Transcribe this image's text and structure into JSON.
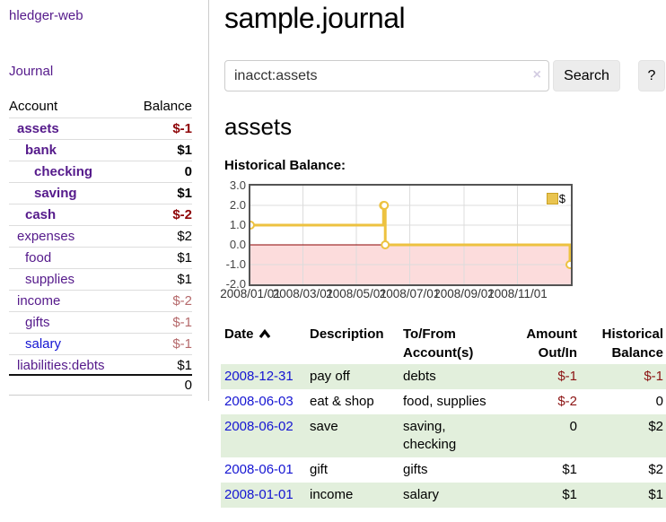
{
  "app": {
    "brand": "hledger-web",
    "nav": {
      "journal": "Journal"
    }
  },
  "sidebar": {
    "accounts_table": {
      "header": {
        "account": "Account",
        "balance": "Balance"
      },
      "rows": [
        {
          "label": "assets",
          "depth": 1,
          "bold": true,
          "link": "purple",
          "balance": "$-1",
          "tone": "darkred"
        },
        {
          "label": "bank",
          "depth": 2,
          "bold": true,
          "link": "purple",
          "balance": "$1",
          "tone": "black"
        },
        {
          "label": "checking",
          "depth": 3,
          "bold": true,
          "link": "purple",
          "balance": "0",
          "tone": "black"
        },
        {
          "label": "saving",
          "depth": 3,
          "bold": true,
          "link": "purple",
          "balance": "$1",
          "tone": "black"
        },
        {
          "label": "cash",
          "depth": 2,
          "bold": true,
          "link": "purple",
          "balance": "$-2",
          "tone": "darkred"
        },
        {
          "label": "expenses",
          "depth": 1,
          "bold": false,
          "link": "purple",
          "balance": "$2",
          "tone": "black"
        },
        {
          "label": "food",
          "depth": 2,
          "bold": false,
          "link": "purple",
          "balance": "$1",
          "tone": "black"
        },
        {
          "label": "supplies",
          "depth": 2,
          "bold": false,
          "link": "purple",
          "balance": "$1",
          "tone": "black"
        },
        {
          "label": "income",
          "depth": 1,
          "bold": false,
          "link": "purple",
          "balance": "$-2",
          "tone": "mutedred"
        },
        {
          "label": "gifts",
          "depth": 2,
          "bold": false,
          "link": "purple",
          "balance": "$-1",
          "tone": "mutedred"
        },
        {
          "label": "salary",
          "depth": 2,
          "bold": false,
          "link": "blue",
          "balance": "$-1",
          "tone": "mutedred"
        },
        {
          "label": "liabilities:debts",
          "depth": 1,
          "bold": false,
          "link": "purple",
          "balance": "$1",
          "tone": "black",
          "heavy_bottom": true
        }
      ],
      "total": "0"
    }
  },
  "main": {
    "title": "sample.journal",
    "search": {
      "value": "inacct:assets",
      "clear_icon": "×",
      "search_button": "Search",
      "help_button": "?"
    },
    "heading": "assets",
    "chart_label": "Historical Balance:",
    "register": {
      "headers": {
        "date": "Date",
        "description": "Description",
        "accounts": "To/From Account(s)",
        "amount": "Amount Out/In",
        "balance": "Historical Balance"
      },
      "rows": [
        {
          "date": "2008-12-31",
          "description": "pay off",
          "accounts": "debts",
          "accounts_wrap": false,
          "amount": "$-1",
          "amount_negative": true,
          "balance": "$-1",
          "balance_negative": true,
          "highlight": true
        },
        {
          "date": "2008-06-03",
          "description": "eat & shop",
          "accounts": "food, supplies",
          "accounts_wrap": false,
          "amount": "$-2",
          "amount_negative": true,
          "balance": "0",
          "balance_negative": false,
          "highlight": false
        },
        {
          "date": "2008-06-02",
          "description": "save",
          "accounts": "saving, checking",
          "accounts_wrap": true,
          "amount": "0",
          "amount_negative": false,
          "balance": "$2",
          "balance_negative": false,
          "highlight": true
        },
        {
          "date": "2008-06-01",
          "description": "gift",
          "accounts": "gifts",
          "accounts_wrap": false,
          "amount": "$1",
          "amount_negative": false,
          "balance": "$2",
          "balance_negative": false,
          "highlight": false
        },
        {
          "date": "2008-01-01",
          "description": "income",
          "accounts": "salary",
          "accounts_wrap": false,
          "amount": "$1",
          "amount_negative": false,
          "balance": "$1",
          "balance_negative": false,
          "highlight": true
        }
      ]
    }
  },
  "chart_data": {
    "type": "line",
    "title": "Historical Balance:",
    "style": "step-after",
    "series": [
      {
        "name": "$",
        "points": [
          {
            "date": "2008-01-01",
            "value": 1
          },
          {
            "date": "2008-06-01",
            "value": 2
          },
          {
            "date": "2008-06-02",
            "value": 2
          },
          {
            "date": "2008-06-03",
            "value": 0
          },
          {
            "date": "2008-12-31",
            "value": -1
          }
        ]
      }
    ],
    "x_range": [
      "2008-01-01",
      "2009-01-01"
    ],
    "x_ticks": [
      {
        "date": "2008-01-01",
        "label": "2008/01/01"
      },
      {
        "date": "2008-03-01",
        "label": "2008/03/01"
      },
      {
        "date": "2008-05-01",
        "label": "2008/05/01"
      },
      {
        "date": "2008-07-01",
        "label": "2008/07/01"
      },
      {
        "date": "2008-09-01",
        "label": "2008/09/01"
      },
      {
        "date": "2008-11-01",
        "label": "2008/11/01"
      }
    ],
    "y_ticks": [
      "3.0",
      "2.0",
      "1.0",
      "0.0",
      "-1.0",
      "-2.0"
    ],
    "ylim": [
      -2,
      3
    ],
    "grid": true,
    "negative_region_shaded": true,
    "legend": {
      "label": "$",
      "position": "top-right"
    }
  },
  "colors": {
    "link_purple": "#551a8b",
    "link_blue": "#1515d2",
    "negative_strong": "#8e0508",
    "negative_muted": "#b5696b",
    "negative_table": "#8c1414",
    "row_highlight_green": "#e2efdc",
    "chart_line_gold": "#edc240",
    "legend_fill": "#e9c450",
    "legend_border": "#c9a227",
    "negative_area_pink": "#fcdcdc",
    "zero_line_red": "#8b0000",
    "chart_border_gray": "#545454",
    "gridline_gray": "#dcdcdc",
    "button_bg": "#ececec",
    "input_border": "#cccccc",
    "divider_gray": "#dddddd"
  }
}
